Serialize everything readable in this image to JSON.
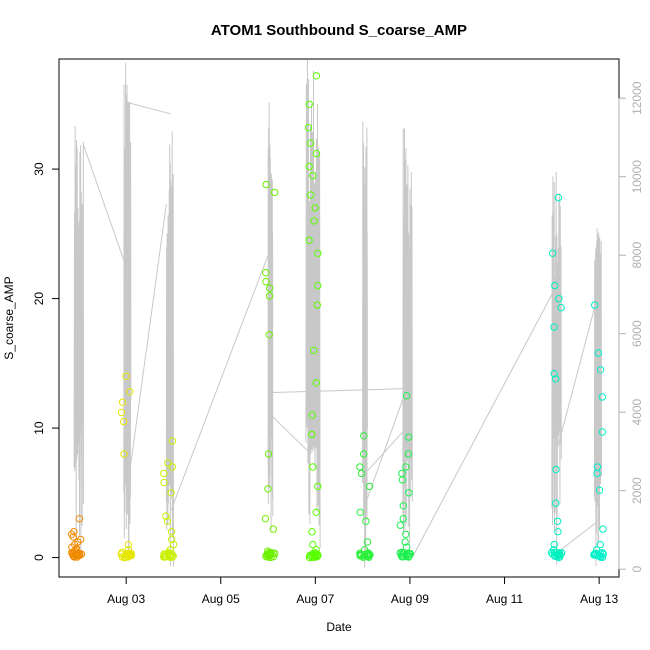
{
  "chart_data": {
    "type": "scatter",
    "title": "ATOM1 Southbound S_coarse_AMP",
    "xlabel": "Date",
    "ylabel": "S_coarse_AMP",
    "x_unit": "days from Aug 01 00:00",
    "xlim": [
      1.58,
      13.42
    ],
    "ylim": [
      -1.5,
      38.5
    ],
    "ylim_right": [
      -200,
      13000
    ],
    "x_ticks": [
      {
        "x": 3,
        "label": "Aug 03"
      },
      {
        "x": 5,
        "label": "Aug 05"
      },
      {
        "x": 7,
        "label": "Aug 07"
      },
      {
        "x": 9,
        "label": "Aug 09"
      },
      {
        "x": 11,
        "label": "Aug 11"
      },
      {
        "x": 13,
        "label": "Aug 13"
      }
    ],
    "y_ticks": [
      0,
      10,
      20,
      30
    ],
    "y_ticks_right": [
      0,
      2000,
      4000,
      6000,
      8000,
      10000,
      12000
    ],
    "grid": false,
    "legend": "none",
    "point_clusters": [
      {
        "x_center": 1.95,
        "color": "#f08a00",
        "values": [
          0.1,
          0.2,
          0.3,
          0.4,
          0.5,
          0.6,
          0.7,
          0.8,
          1.0,
          1.2,
          1.4,
          1.6,
          1.8,
          2.0,
          3.0
        ]
      },
      {
        "x_center": 3.0,
        "color": "#e6e600",
        "values": [
          0.1,
          0.3,
          0.6,
          1.0,
          8.0,
          10.5,
          11.2,
          12.0,
          12.8,
          14.0
        ]
      },
      {
        "x_center": 3.9,
        "color": "#c8f000",
        "values": [
          0.1,
          0.3,
          0.6,
          1.0,
          1.4,
          2.0,
          2.8,
          3.2,
          5.0,
          5.8,
          6.5,
          7.0,
          7.3,
          9.0
        ]
      },
      {
        "x_center": 6.05,
        "color": "#6cf000",
        "values": [
          0.1,
          0.3,
          0.5,
          2.2,
          3.0,
          5.3,
          8.0,
          17.2,
          20.2,
          20.8,
          21.3,
          22.0,
          28.2,
          28.8
        ]
      },
      {
        "x_center": 6.95,
        "color": "#58ff00",
        "values": [
          0.1,
          0.3,
          0.6,
          1.0,
          2.0,
          3.5,
          5.5,
          7.0,
          9.5,
          11.0,
          13.5,
          16.0,
          19.5,
          21.0,
          23.5,
          24.5,
          26.0,
          27.0,
          28.0,
          29.5,
          30.2,
          31.2,
          32.0,
          33.2,
          35.0,
          37.2
        ]
      },
      {
        "x_center": 8.05,
        "color": "#2cf03a",
        "values": [
          0.1,
          0.3,
          0.6,
          1.2,
          2.8,
          3.5,
          5.5,
          6.5,
          7.0,
          8.0,
          9.4
        ]
      },
      {
        "x_center": 8.9,
        "color": "#1ef050",
        "values": [
          0.1,
          0.2,
          0.4,
          0.8,
          1.2,
          1.8,
          2.5,
          3.0,
          4.0,
          5.0,
          6.0,
          6.5,
          7.0,
          8.0,
          9.3,
          12.5
        ]
      },
      {
        "x_center": 12.1,
        "color": "#00f0c0",
        "values": [
          0.1,
          0.3,
          0.6,
          1.0,
          2.0,
          2.8,
          4.2,
          6.8,
          13.8,
          14.2,
          17.8,
          19.3,
          20.0,
          21.0,
          23.5,
          27.8
        ]
      },
      {
        "x_center": 12.98,
        "color": "#00f0c8",
        "values": [
          0.1,
          0.3,
          0.6,
          1.0,
          2.2,
          5.2,
          6.5,
          7.0,
          9.7,
          12.4,
          14.5,
          15.8,
          19.5
        ]
      }
    ],
    "line_series": {
      "color": "#c8c8c8",
      "axis": "right",
      "bursts": [
        {
          "x_start": 1.9,
          "x_end": 2.1,
          "lo": 0,
          "hi": 11300
        },
        {
          "x_start": 2.95,
          "x_end": 3.1,
          "lo": 0,
          "hi": 13000
        },
        {
          "x_start": 3.85,
          "x_end": 4.0,
          "lo": 0,
          "hi": 11300
        },
        {
          "x_start": 6.0,
          "x_end": 6.1,
          "lo": 0,
          "hi": 11900
        },
        {
          "x_start": 6.8,
          "x_end": 7.1,
          "lo": 0,
          "hi": 13000
        },
        {
          "x_start": 8.0,
          "x_end": 8.1,
          "lo": 0,
          "hi": 11500
        },
        {
          "x_start": 8.85,
          "x_end": 9.05,
          "lo": 0,
          "hi": 11300
        },
        {
          "x_start": 12.0,
          "x_end": 12.2,
          "lo": 0,
          "hi": 10200
        },
        {
          "x_start": 12.9,
          "x_end": 13.05,
          "lo": 0,
          "hi": 8800
        }
      ],
      "connectors": [
        [
          2.1,
          10800,
          3.0,
          7700
        ],
        [
          3.0,
          11900,
          3.95,
          11600
        ],
        [
          3.1,
          2700,
          3.85,
          9300
        ],
        [
          3.95,
          1500,
          6.0,
          8000
        ],
        [
          6.1,
          4500,
          8.9,
          4600
        ],
        [
          6.0,
          4000,
          6.85,
          3000
        ],
        [
          8.1,
          2500,
          8.85,
          3500
        ],
        [
          8.1,
          1800,
          8.9,
          4500
        ],
        [
          9.05,
          300,
          12.0,
          7000
        ],
        [
          12.2,
          500,
          12.95,
          1200
        ],
        [
          12.1,
          3000,
          13.0,
          7100
        ]
      ]
    }
  }
}
